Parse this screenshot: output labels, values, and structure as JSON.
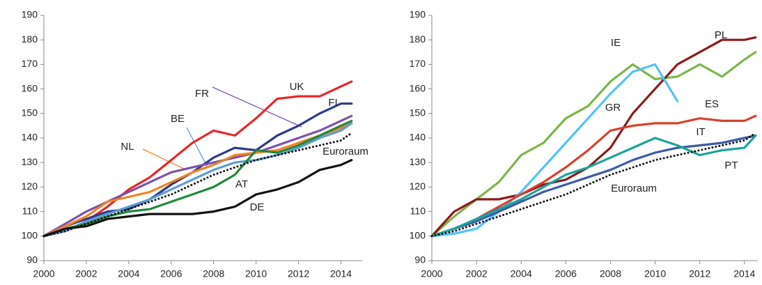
{
  "chart_data": [
    {
      "type": "line",
      "x": [
        2000,
        2001,
        2002,
        2003,
        2004,
        2005,
        2006,
        2007,
        2008,
        2009,
        2010,
        2011,
        2012,
        2013,
        2014,
        2014.5
      ],
      "xlim": [
        2000,
        2015
      ],
      "ylim": [
        90,
        190
      ],
      "xticks": [
        2000,
        2002,
        2004,
        2006,
        2008,
        2010,
        2012,
        2014
      ],
      "yticks": [
        90,
        100,
        110,
        120,
        130,
        140,
        150,
        160,
        170,
        180,
        190
      ],
      "series": [
        {
          "name": "UK",
          "color": "#e8262a",
          "values": [
            100,
            102,
            106,
            112,
            119,
            124,
            131,
            138,
            143,
            141,
            148,
            156,
            157,
            157,
            161,
            163
          ]
        },
        {
          "name": "FI",
          "color": "#2e3a8c",
          "values": [
            100,
            104,
            107,
            110,
            111,
            115,
            121,
            126,
            132,
            136,
            135,
            141,
            145,
            150,
            154,
            154
          ]
        },
        {
          "name": "FR",
          "color": "#7b52ab",
          "values": [
            100,
            105,
            110,
            114,
            118,
            122,
            126,
            128,
            130,
            132,
            134,
            137,
            140,
            143,
            147,
            149
          ]
        },
        {
          "name": "NL",
          "color": "#f58220",
          "values": [
            100,
            104,
            108,
            114,
            116,
            118,
            122,
            126,
            129,
            133,
            134,
            135,
            138,
            141,
            144,
            146
          ]
        },
        {
          "name": "BE",
          "color": "#5b9bd5",
          "values": [
            100,
            102,
            106,
            109,
            112,
            115,
            119,
            123,
            127,
            130,
            131,
            133,
            136,
            140,
            143,
            146
          ]
        },
        {
          "name": "AT",
          "color": "#1e8a3c",
          "values": [
            100,
            103,
            105,
            108,
            110,
            111,
            114,
            117,
            120,
            125,
            135,
            134,
            137,
            141,
            145,
            147
          ]
        },
        {
          "name": "DE",
          "color": "#111111",
          "values": [
            100,
            103,
            104,
            107,
            108,
            109,
            109,
            109,
            110,
            112,
            117,
            119,
            122,
            127,
            129,
            131
          ]
        },
        {
          "name": "Euroraum",
          "color": "#111111",
          "dotted": true,
          "values": [
            100,
            102,
            105,
            108,
            111,
            114,
            117,
            121,
            125,
            128,
            131,
            133,
            135,
            137,
            139,
            142
          ]
        }
      ]
    },
    {
      "type": "line",
      "x": [
        2000,
        2001,
        2002,
        2003,
        2004,
        2005,
        2006,
        2007,
        2008,
        2009,
        2010,
        2011,
        2012,
        2013,
        2014,
        2014.5
      ],
      "xlim": [
        2000,
        2014.6
      ],
      "ylim": [
        90,
        190
      ],
      "xticks": [
        2000,
        2002,
        2004,
        2006,
        2008,
        2010,
        2012,
        2014
      ],
      "yticks": [
        90,
        100,
        110,
        120,
        130,
        140,
        150,
        160,
        170,
        180,
        190
      ],
      "series": [
        {
          "name": "IE",
          "color": "#7ab648",
          "values": [
            100,
            108,
            115,
            122,
            133,
            138,
            148,
            153,
            163,
            170,
            164,
            165,
            170,
            165,
            172,
            175
          ]
        },
        {
          "name": "PL",
          "color": "#8b1a1a",
          "values": [
            100,
            110,
            115,
            115,
            117,
            121,
            123,
            128,
            136,
            150,
            160,
            170,
            175,
            180,
            180,
            181
          ]
        },
        {
          "name": "GR",
          "color": "#4fc3f7",
          "values": [
            100,
            101,
            103,
            110,
            118,
            128,
            138,
            148,
            158,
            167,
            170,
            155,
            null,
            null,
            null,
            null
          ]
        },
        {
          "name": "ES",
          "color": "#d9402c",
          "values": [
            100,
            103,
            107,
            112,
            117,
            122,
            128,
            135,
            143,
            145,
            146,
            146,
            148,
            147,
            147,
            149
          ]
        },
        {
          "name": "IT",
          "color": "#3c5aa8",
          "values": [
            100,
            103,
            106,
            110,
            114,
            118,
            121,
            124,
            127,
            131,
            134,
            136,
            137,
            138,
            140,
            141
          ]
        },
        {
          "name": "PT",
          "color": "#1aa39b",
          "values": [
            100,
            103,
            107,
            111,
            115,
            120,
            125,
            128,
            132,
            136,
            140,
            137,
            133,
            135,
            136,
            141
          ]
        },
        {
          "name": "Euroraum",
          "color": "#111111",
          "dotted": true,
          "values": [
            100,
            102,
            105,
            108,
            111,
            114,
            117,
            121,
            125,
            128,
            131,
            133,
            135,
            137,
            139,
            142
          ]
        }
      ]
    }
  ]
}
